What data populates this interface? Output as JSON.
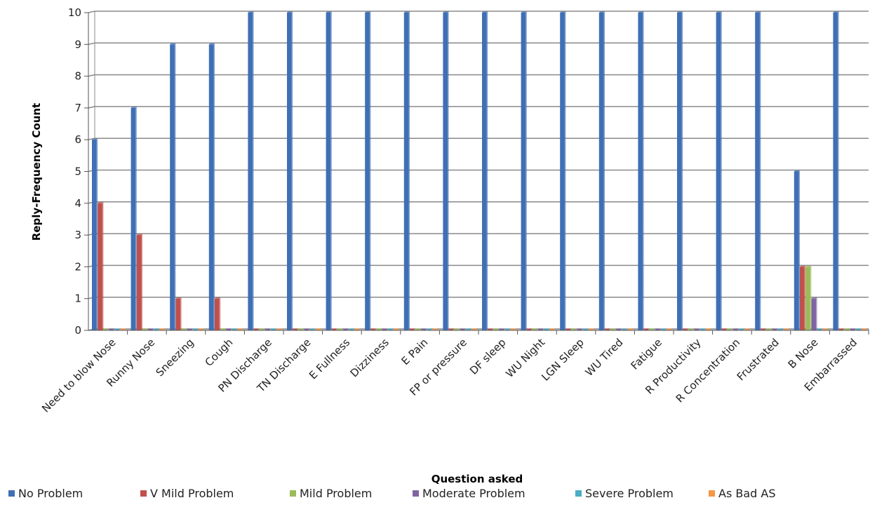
{
  "chart_data": {
    "type": "bar",
    "title": "",
    "xlabel": "Question asked",
    "ylabel": "Reply-Frequency Count",
    "ylim": [
      0,
      10
    ],
    "yticks": [
      0,
      1,
      2,
      3,
      4,
      5,
      6,
      7,
      8,
      9,
      10
    ],
    "grid": true,
    "legend_position": "bottom",
    "categories": [
      "Need to blow Nose",
      "Runny Nose",
      "Sneezing",
      "Cough",
      "PN Discharge",
      "TN Discharge",
      "E Fullness",
      "Dizziness",
      "E Pain",
      "FP or pressure",
      "DF sleep",
      "WU Night",
      "LGN Sleep",
      "WU Tired",
      "Fatigue",
      "R Productivity",
      "R Concentration",
      "Frustrated",
      "B Nose",
      "Embarrassed"
    ],
    "series": [
      {
        "name": "No Problem",
        "color": "#3f6fb5",
        "values": [
          6,
          7,
          9,
          9,
          10,
          10,
          10,
          10,
          10,
          10,
          10,
          10,
          10,
          10,
          10,
          10,
          10,
          10,
          5,
          10
        ]
      },
      {
        "name": "V Mild Problem",
        "color": "#c0504d",
        "values": [
          4,
          3,
          1,
          1,
          0,
          0,
          0,
          0,
          0,
          0,
          0,
          0,
          0,
          0,
          0,
          0,
          0,
          0,
          2,
          0
        ]
      },
      {
        "name": "Mild Problem",
        "color": "#9bbb59",
        "values": [
          0,
          0,
          0,
          0,
          0,
          0,
          0,
          0,
          0,
          0,
          0,
          0,
          0,
          0,
          0,
          0,
          0,
          0,
          2,
          0
        ]
      },
      {
        "name": "Moderate Problem",
        "color": "#8064a2",
        "values": [
          0,
          0,
          0,
          0,
          0,
          0,
          0,
          0,
          0,
          0,
          0,
          0,
          0,
          0,
          0,
          0,
          0,
          0,
          1,
          0
        ]
      },
      {
        "name": "Severe Problem",
        "color": "#4bacc6",
        "values": [
          0,
          0,
          0,
          0,
          0,
          0,
          0,
          0,
          0,
          0,
          0,
          0,
          0,
          0,
          0,
          0,
          0,
          0,
          0,
          0
        ]
      },
      {
        "name": "As Bad AS",
        "color": "#f79646",
        "values": [
          0,
          0,
          0,
          0,
          0,
          0,
          0,
          0,
          0,
          0,
          0,
          0,
          0,
          0,
          0,
          0,
          0,
          0,
          0,
          0
        ]
      }
    ]
  }
}
